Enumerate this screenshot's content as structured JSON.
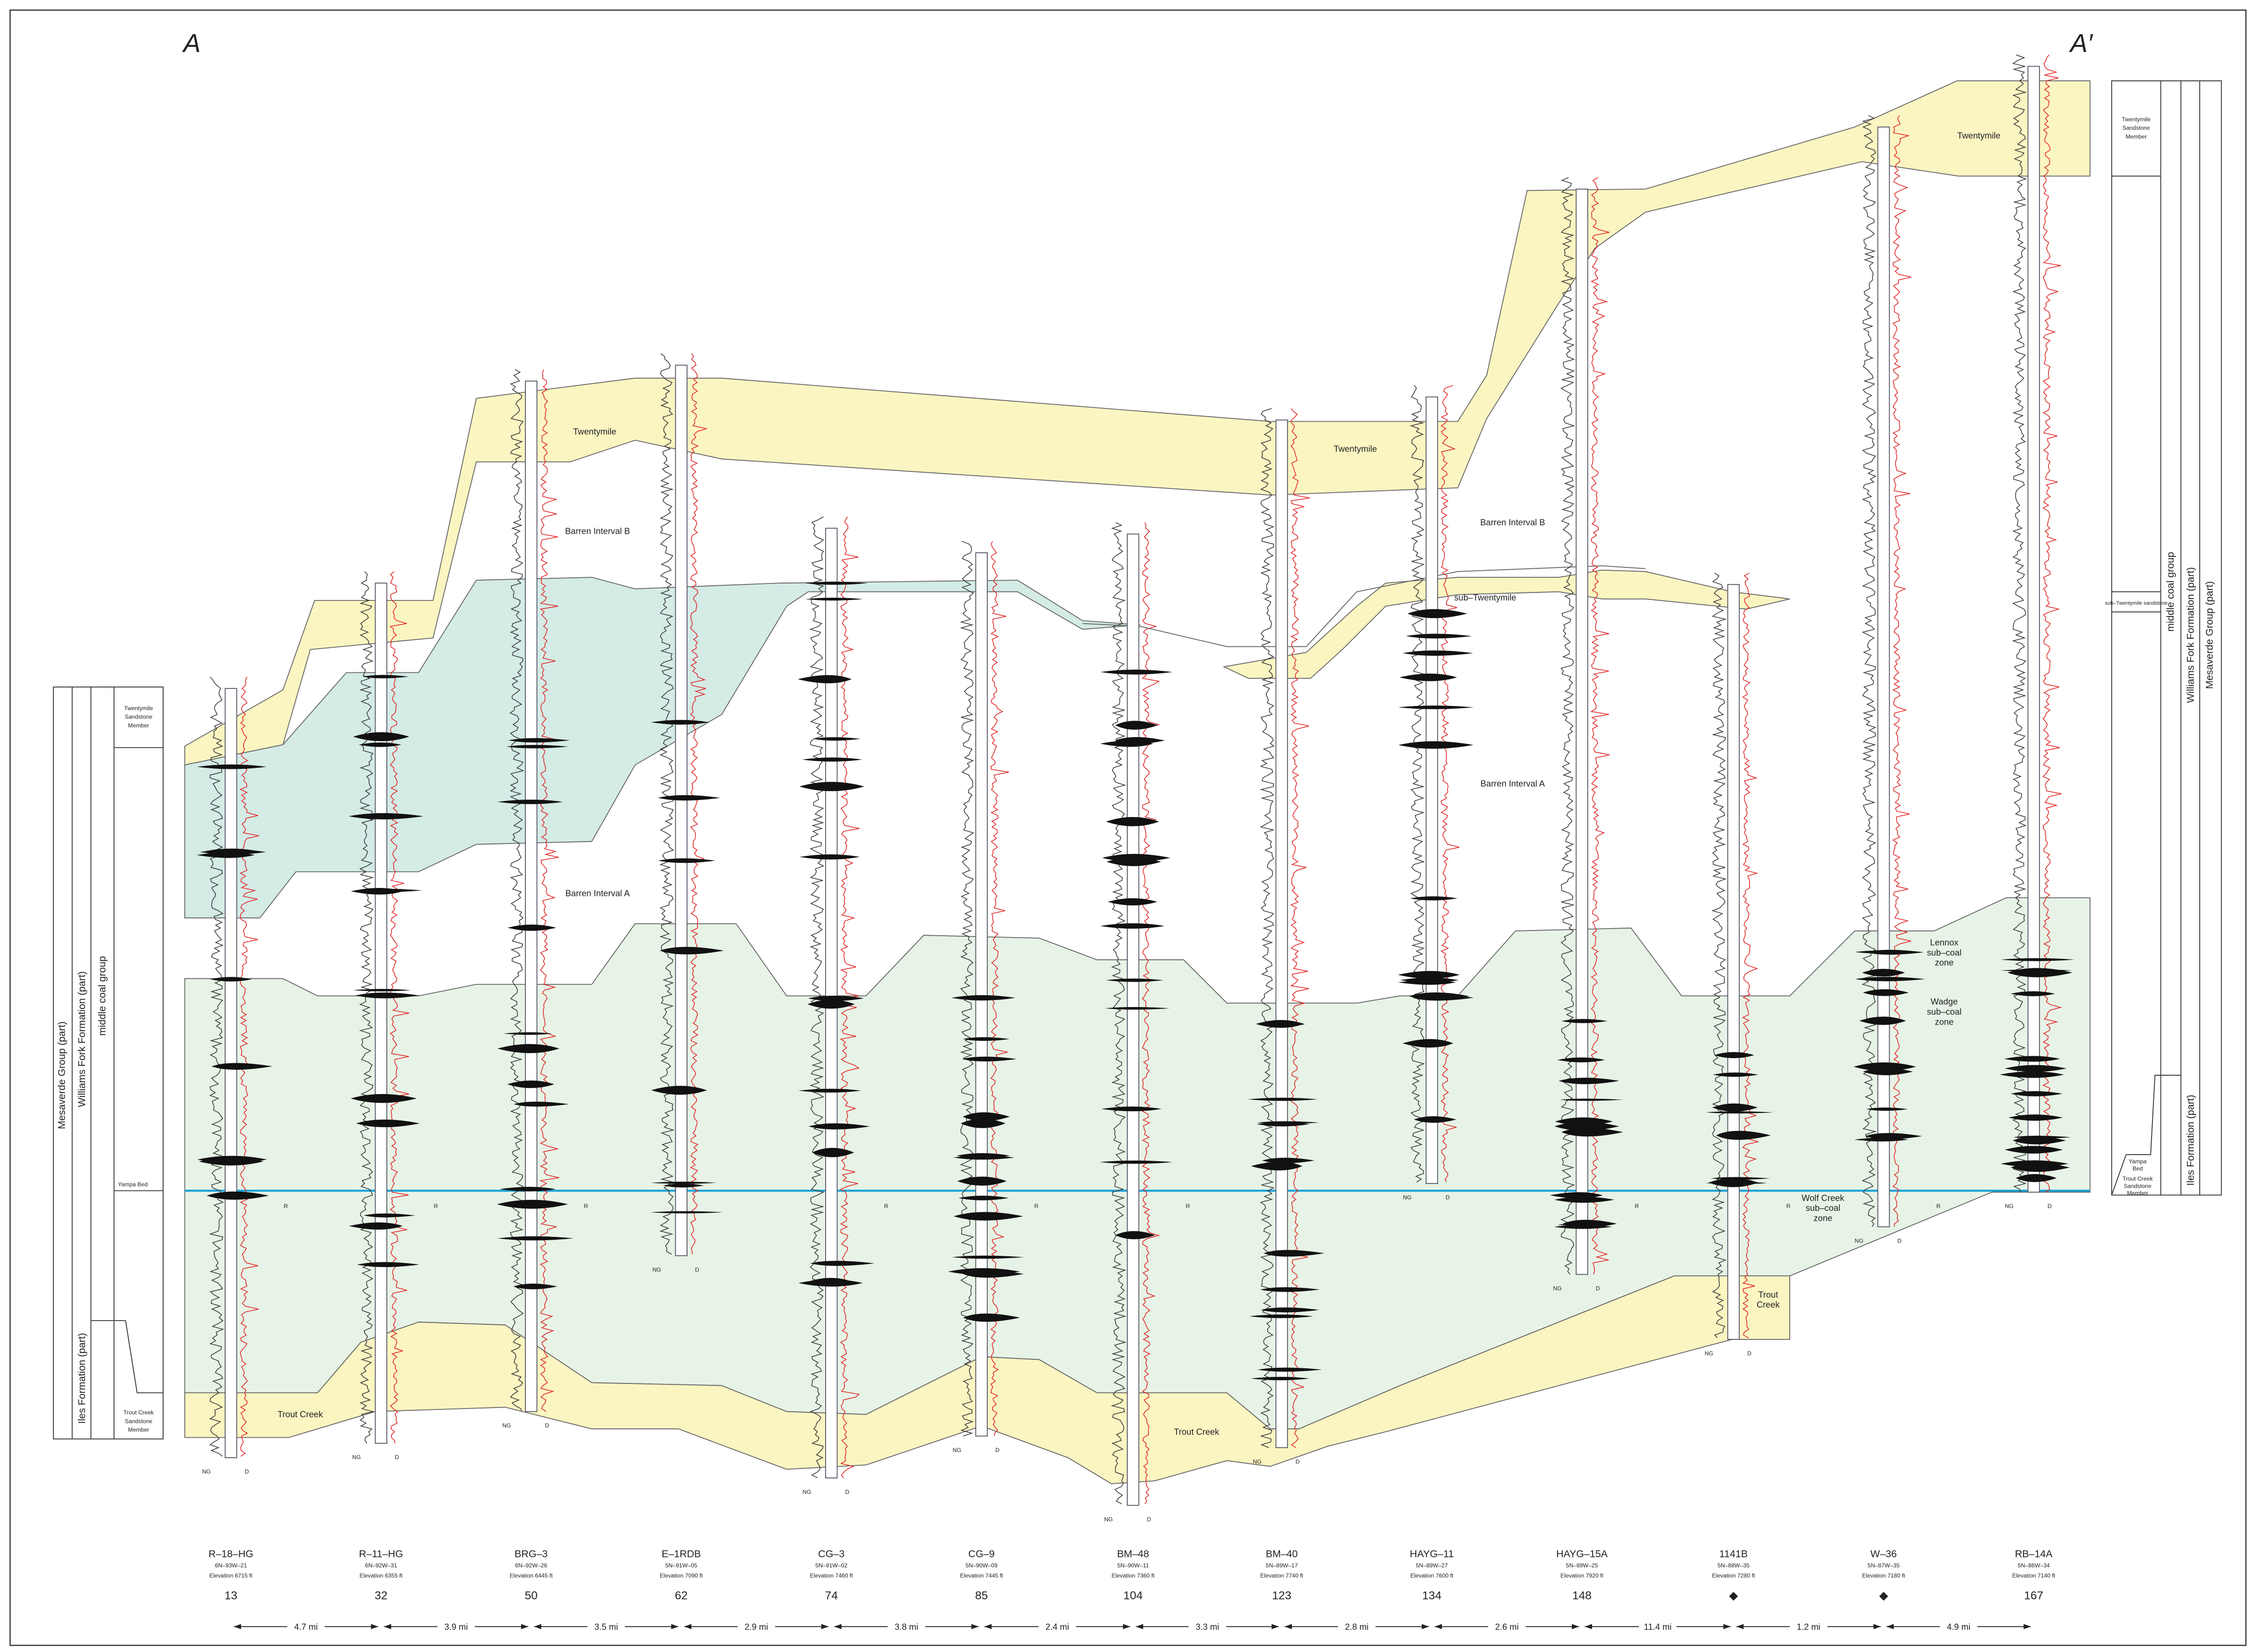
{
  "section": {
    "start": "A",
    "end": "A′"
  },
  "wells": [
    {
      "name": "R–18–HG",
      "location": "6N–93W–21",
      "elevation": "Elevation 6715 ft",
      "number": "13"
    },
    {
      "name": "R–11–HG",
      "location": "6N–92W–31",
      "elevation": "Elevation 6355 ft",
      "number": "32"
    },
    {
      "name": "BRG–3",
      "location": "6N–92W–26",
      "elevation": "Elevation 6445 ft",
      "number": "50"
    },
    {
      "name": "E–1RDB",
      "location": "5N–91W–05",
      "elevation": "Elevation 7090 ft",
      "number": "62"
    },
    {
      "name": "CG–3",
      "location": "5N–91W–02",
      "elevation": "Elevation 7460 ft",
      "number": "74"
    },
    {
      "name": "CG–9",
      "location": "5N–90W–09",
      "elevation": "Elevation 7445 ft",
      "number": "85"
    },
    {
      "name": "BM–48",
      "location": "5N–90W–11",
      "elevation": "Elevation 7360 ft",
      "number": "104"
    },
    {
      "name": "BM–40",
      "location": "5N–89W–17",
      "elevation": "Elevation 7740 ft",
      "number": "123"
    },
    {
      "name": "HAYG–11",
      "location": "5N–89W–27",
      "elevation": "Elevation 7600 ft",
      "number": "134"
    },
    {
      "name": "HAYG–15A",
      "location": "5N–89W–25",
      "elevation": "Elevation 7920 ft",
      "number": "148"
    },
    {
      "name": "1141B",
      "location": "5N–88W–35",
      "elevation": "Elevation 7280 ft",
      "number": "◆"
    },
    {
      "name": "W–36",
      "location": "5N–87W–35",
      "elevation": "Elevation 7180 ft",
      "number": "◆"
    },
    {
      "name": "RB–14A",
      "location": "5N–86W–34",
      "elevation": "Elevation 7140 ft",
      "number": "167"
    }
  ],
  "distances": [
    "4.7 mi",
    "3.9 mi",
    "3.5 mi",
    "2.9 mi",
    "3.8 mi",
    "2.4 mi",
    "3.3 mi",
    "2.8 mi",
    "2.6 mi",
    "11.4 mi",
    "1.2 mi",
    "4.9 mi"
  ],
  "curve_labels": {
    "gamma": "NG",
    "density": "D",
    "resistivity": "R"
  },
  "zone_labels": [
    "Twentymile",
    "Twentymile",
    "Twentymile",
    "Barren Interval B",
    "Barren Interval B",
    "Barren Interval A",
    "Barren Interval A",
    "sub–Twentymile",
    [
      "Lennox",
      "sub–coal",
      "zone"
    ],
    [
      "Wadge",
      "sub–coal",
      "zone"
    ],
    [
      "Wolf Creek",
      "sub–coal",
      "zone"
    ],
    "Trout Creek",
    "Trout Creek",
    [
      "Trout",
      "Creek"
    ]
  ],
  "left_column": {
    "group": "Mesaverde Group (part)",
    "formation": "Williams Fork Formation (part)",
    "unit": "middle coal group",
    "top_member": [
      "Twentymile",
      "Sandstone",
      "Member"
    ],
    "bed": "Yampa Bed",
    "lower_formation": "Iles Formation (part)",
    "bottom_member": [
      "Trout Creek",
      "Sandstone",
      "Member"
    ]
  },
  "right_column": {
    "top_member": [
      "Twentymile",
      "Sandstone",
      "Member"
    ],
    "sandstone": "sub–Twentymile sandstone",
    "unit": "middle coal group",
    "formation": "Williams Fork Formation (part)",
    "group": "Mesaverde Group (part)",
    "lower_formation": "Iles Formation (part)",
    "bed": [
      "Yampa",
      "Bed"
    ],
    "bottom_member": [
      "Trout Creek",
      "Sandstone",
      "Member"
    ]
  }
}
